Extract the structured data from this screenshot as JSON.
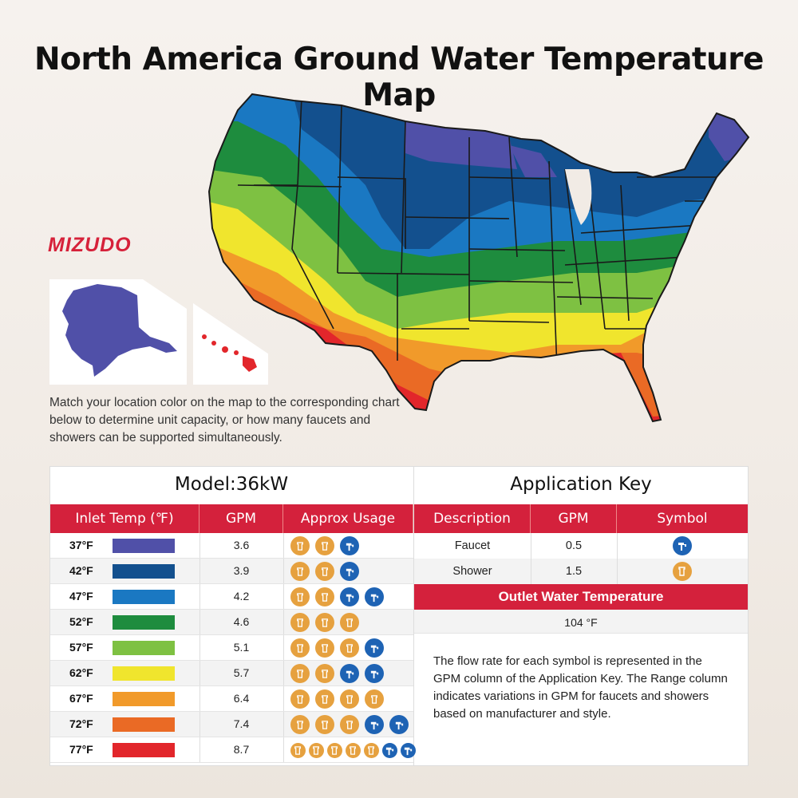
{
  "title": "North America Ground Water Temperature Map",
  "brand": "MIZUDO",
  "intro": "Match your location color on the map to the corresponding chart below to determine unit capacity, or how many faucets and showers can be supported simultaneously.",
  "colors": {
    "accent": "#d4213c",
    "shower": "#e6a13f",
    "faucet": "#1e63b4",
    "t37": "#5050a8",
    "t42": "#13508e",
    "t47": "#1a78c2",
    "t52": "#1e8c3e",
    "t57": "#7ec142",
    "t62": "#f0e52d",
    "t67": "#f19a2a",
    "t72": "#ea6a25",
    "t77": "#e2262b"
  },
  "model_table": {
    "title": "Model:36kW",
    "headers": [
      "Inlet Temp (℉)",
      "GPM",
      "Approx Usage"
    ],
    "rows": [
      {
        "temp": "37°F",
        "color": "#5050a8",
        "gpm": "3.6",
        "icons": [
          "shower",
          "shower",
          "faucet"
        ]
      },
      {
        "temp": "42°F",
        "color": "#13508e",
        "gpm": "3.9",
        "icons": [
          "shower",
          "shower",
          "faucet"
        ]
      },
      {
        "temp": "47°F",
        "color": "#1a78c2",
        "gpm": "4.2",
        "icons": [
          "shower",
          "shower",
          "faucet",
          "faucet"
        ]
      },
      {
        "temp": "52°F",
        "color": "#1e8c3e",
        "gpm": "4.6",
        "icons": [
          "shower",
          "shower",
          "shower"
        ]
      },
      {
        "temp": "57°F",
        "color": "#7ec142",
        "gpm": "5.1",
        "icons": [
          "shower",
          "shower",
          "shower",
          "faucet"
        ]
      },
      {
        "temp": "62°F",
        "color": "#f0e52d",
        "gpm": "5.7",
        "icons": [
          "shower",
          "shower",
          "faucet",
          "faucet"
        ]
      },
      {
        "temp": "67°F",
        "color": "#f19a2a",
        "gpm": "6.4",
        "icons": [
          "shower",
          "shower",
          "shower",
          "shower"
        ]
      },
      {
        "temp": "72°F",
        "color": "#ea6a25",
        "gpm": "7.4",
        "icons": [
          "shower",
          "shower",
          "shower",
          "faucet",
          "faucet"
        ]
      },
      {
        "temp": "77°F",
        "color": "#e2262b",
        "gpm": "8.7",
        "icons": [
          "shower",
          "shower",
          "shower",
          "shower",
          "shower",
          "faucet",
          "faucet"
        ]
      }
    ]
  },
  "application_key": {
    "title": "Application Key",
    "headers": [
      "Description",
      "GPM",
      "Symbol"
    ],
    "rows": [
      {
        "description": "Faucet",
        "gpm": "0.5",
        "symbol": "faucet"
      },
      {
        "description": "Shower",
        "gpm": "1.5",
        "symbol": "shower"
      }
    ],
    "outlet_title": "Outlet Water Temperature",
    "outlet_value": "104 °F",
    "note": "The flow rate for each symbol is represented in the GPM column of the Application Key. The Range column indicates variations in GPM for faucets and showers based on manufacturer and style."
  }
}
